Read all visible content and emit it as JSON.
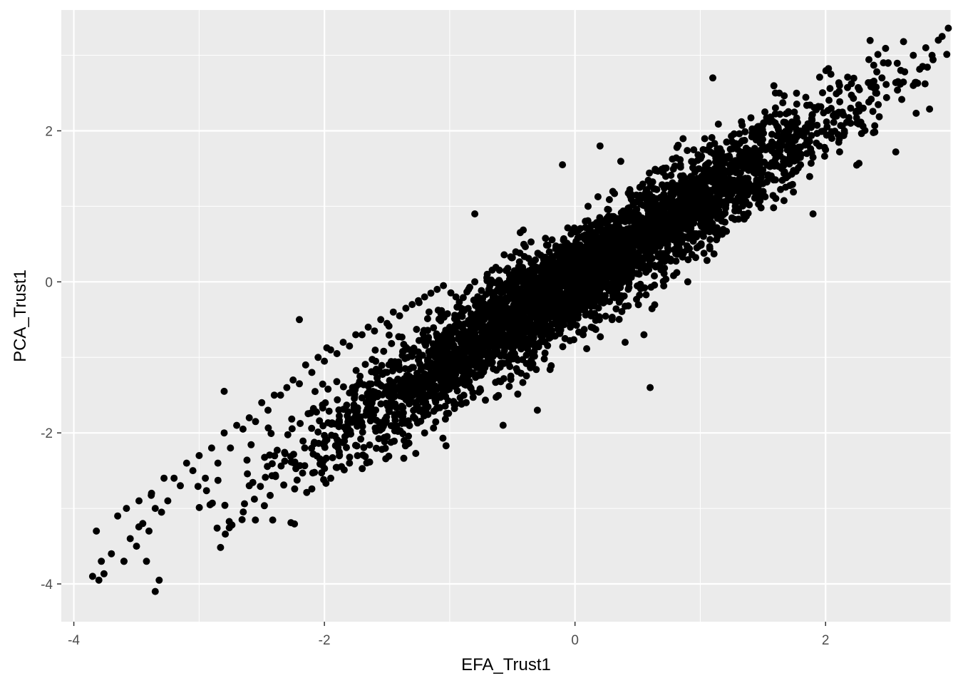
{
  "chart_data": {
    "type": "scatter",
    "title": "",
    "xlabel": "EFA_Trust1",
    "ylabel": "PCA_Trust1",
    "xlim": [
      -4.1,
      3.0
    ],
    "ylim": [
      -4.5,
      3.6
    ],
    "x_ticks": [
      -4,
      -2,
      0,
      2
    ],
    "y_ticks": [
      -4,
      -2,
      0,
      2
    ],
    "x_tick_labels": [
      "-4",
      "-2",
      "0",
      "2"
    ],
    "y_tick_labels": [
      "-4",
      "-2",
      "0",
      "2"
    ],
    "grid": true,
    "legend": "none",
    "colors": {
      "panel_background": "#ebebeb",
      "grid_line": "#ffffff",
      "point": "#000000",
      "tick_label": "#4d4d4d",
      "axis_title": "#000000"
    },
    "series": [
      {
        "x": [
          -3.85,
          -3.82,
          -3.8,
          -3.78,
          -3.7,
          -3.65,
          -3.6,
          -3.58,
          -3.55,
          -3.5,
          -3.48,
          -3.45,
          -3.42,
          -3.4,
          -3.38,
          -3.35,
          -3.3,
          -3.28,
          -3.25,
          -3.2,
          -3.15,
          -3.1,
          -3.05,
          -3.0,
          -2.95,
          -2.9,
          -2.85,
          -2.8,
          -2.75,
          -2.7,
          -2.65,
          -2.6,
          -2.55,
          -2.5,
          -2.45,
          -2.4,
          -2.35,
          -2.3,
          -2.25,
          -2.2,
          -2.15,
          -2.1,
          -2.05,
          -2.0,
          -1.95,
          -1.9,
          -1.85,
          -1.8,
          -1.75,
          -1.7,
          -1.65,
          -1.6,
          -1.55,
          -1.5,
          -1.45,
          -1.4,
          -1.35,
          -1.3,
          -1.25,
          -1.2,
          -1.15,
          -1.1,
          -1.05,
          -1.0,
          -0.95,
          -0.9,
          -0.85,
          -0.8,
          -0.75,
          -0.7,
          -0.65,
          -0.6,
          -0.55,
          -0.5,
          -0.45,
          -0.4,
          -0.35,
          -0.3,
          -0.25,
          -0.2,
          -0.15,
          -0.1,
          -0.05,
          0.0,
          0.05,
          0.1,
          0.15,
          0.2,
          0.25,
          0.3,
          0.35,
          0.4,
          0.45,
          0.5,
          0.55,
          0.6,
          0.65,
          0.7,
          0.75,
          0.8,
          0.85,
          0.9,
          0.95,
          1.0,
          1.05,
          1.1,
          1.15,
          1.2,
          1.25,
          1.3,
          1.35,
          1.4,
          1.45,
          1.5,
          1.55,
          1.6,
          1.65,
          1.7,
          1.75,
          1.8,
          1.85,
          1.9,
          1.95,
          2.0,
          2.05,
          2.1,
          2.15,
          2.2,
          2.3,
          2.4,
          2.45,
          2.5,
          2.6,
          2.7,
          2.8,
          2.85,
          2.9,
          2.93,
          2.2,
          -2.2,
          -2.8,
          -0.8,
          -0.1,
          0.6,
          1.1,
          0.2,
          -3.35,
          -3.6,
          1.6,
          2.7,
          -1.2,
          -0.3,
          0.9,
          0.4,
          -1.8,
          -2.6,
          1.9,
          0.55
        ],
        "y": [
          -3.9,
          -3.3,
          -3.95,
          -3.7,
          -3.6,
          -3.1,
          -3.7,
          -3.0,
          -3.4,
          -3.5,
          -2.9,
          -3.2,
          -3.7,
          -3.3,
          -2.8,
          -3.0,
          -3.05,
          -2.6,
          -2.9,
          -2.6,
          -2.7,
          -2.4,
          -2.5,
          -2.3,
          -2.6,
          -2.2,
          -2.4,
          -2.0,
          -2.2,
          -1.9,
          -1.95,
          -1.8,
          -1.85,
          -1.6,
          -1.7,
          -1.5,
          -1.5,
          -1.4,
          -1.3,
          -1.35,
          -1.1,
          -1.2,
          -1.0,
          -1.05,
          -0.9,
          -0.95,
          -0.8,
          -0.85,
          -0.7,
          -0.7,
          -0.6,
          -0.65,
          -0.5,
          -0.55,
          -0.4,
          -0.45,
          -0.35,
          -0.3,
          -0.25,
          -0.2,
          -0.15,
          -0.1,
          -0.05,
          -0.6,
          -0.2,
          -0.4,
          -0.1,
          0.0,
          -0.3,
          0.1,
          -0.2,
          0.0,
          0.15,
          -0.1,
          0.2,
          0.1,
          0.25,
          0.05,
          0.3,
          0.15,
          0.35,
          0.2,
          0.3,
          0.1,
          0.4,
          0.3,
          0.5,
          0.35,
          0.55,
          0.4,
          0.6,
          0.5,
          0.65,
          0.55,
          0.7,
          0.6,
          0.8,
          0.7,
          0.85,
          0.75,
          0.9,
          0.85,
          1.0,
          0.9,
          1.1,
          1.0,
          1.15,
          1.05,
          1.2,
          1.1,
          1.3,
          1.2,
          1.35,
          1.3,
          1.4,
          1.35,
          1.5,
          1.4,
          1.6,
          1.55,
          1.7,
          1.65,
          1.8,
          1.75,
          1.9,
          1.95,
          2.0,
          2.1,
          2.3,
          2.5,
          2.7,
          2.9,
          2.8,
          3.0,
          3.1,
          3.0,
          3.2,
          3.25,
          2.3,
          -0.5,
          -1.45,
          0.9,
          1.55,
          -1.4,
          2.7,
          1.8,
          -4.1,
          -3.7,
          2.5,
          2.6,
          -2.0,
          -1.7,
          0.0,
          -0.8,
          -2.4,
          -2.7,
          0.9,
          -0.7
        ]
      }
    ]
  }
}
